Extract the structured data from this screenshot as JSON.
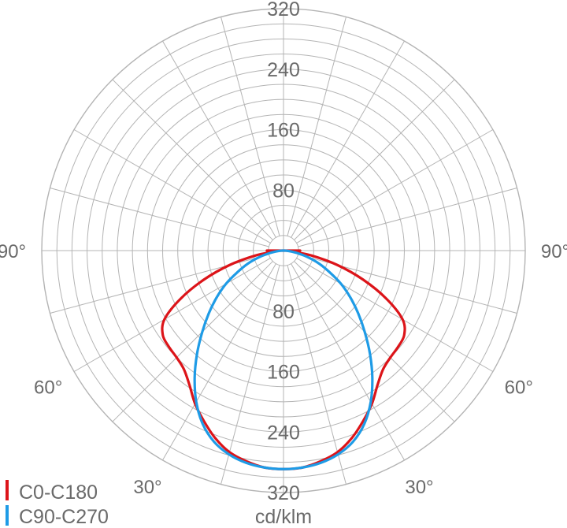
{
  "chart_data": {
    "type": "polar",
    "unit_label": "cd/klm",
    "radial_ticks": [
      80,
      160,
      240,
      320
    ],
    "radial_tick_labels": [
      "80",
      "160",
      "240",
      "320"
    ],
    "rmax": 320,
    "angle_labels": [
      {
        "text": "90°",
        "angle": 90
      },
      {
        "text": "60°",
        "angle": 60
      },
      {
        "text": "30°",
        "angle": 30
      },
      {
        "text": "90°",
        "angle": -90
      },
      {
        "text": "60°",
        "angle": -60
      },
      {
        "text": "30°",
        "angle": -30
      }
    ],
    "legend": [
      {
        "label": "C0-C180",
        "color": "#dc1419"
      },
      {
        "label": "C90-C270",
        "color": "#1e9be6"
      }
    ],
    "series": [
      {
        "name": "C0-C180",
        "color": "#dc1419",
        "theta_deg": [
          0,
          5,
          10,
          15,
          20,
          25,
          30,
          35,
          40,
          45,
          50,
          55,
          60,
          65,
          70,
          75,
          80,
          85,
          88,
          90
        ],
        "values": [
          289,
          288,
          283,
          276,
          264,
          249,
          234,
          217,
          205,
          200,
          198,
          195,
          182,
          150,
          112,
          74,
          38,
          11,
          17,
          22
        ]
      },
      {
        "name": "C90-C270",
        "color": "#1e9be6",
        "theta_deg": [
          0,
          5,
          10,
          15,
          20,
          25,
          30,
          35,
          40,
          45,
          50,
          55,
          60,
          65,
          70,
          75,
          80,
          85,
          90
        ],
        "values": [
          289,
          288,
          285,
          279,
          269,
          253,
          231,
          205,
          178,
          152,
          129,
          108,
          88,
          67,
          50,
          33,
          18,
          7,
          2
        ]
      }
    ]
  }
}
